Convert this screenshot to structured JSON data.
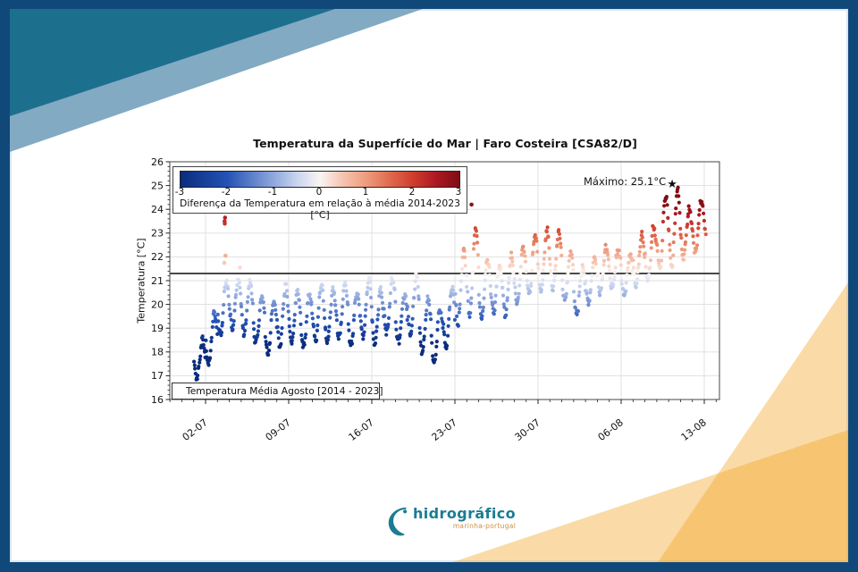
{
  "colors": {
    "frame_border": "#11487a",
    "teal_dark": "#1c708d",
    "teal_light": "#82aac2",
    "orange_overlay": "#f3a623",
    "plot_spine": "#555555",
    "grid": "#dedede",
    "mean_line": "#2e2e2e",
    "tick": "#222222",
    "logo_teal": "#1a7d92",
    "logo_sub_orange": "#cf9040"
  },
  "logo": {
    "name": "hidrográfico",
    "subtitle": "marinha-portugal"
  },
  "chart_data": {
    "type": "scatter",
    "title": "Temperatura da Superfície do Mar | Faro Costeira [CSA82/D]",
    "ylabel": "Temperatura [°C]",
    "ylim": [
      16,
      26
    ],
    "y_ticks": [
      16,
      17,
      18,
      19,
      20,
      21,
      22,
      23,
      24,
      25,
      26
    ],
    "x_tick_labels": [
      "02-07",
      "09-07",
      "16-07",
      "23-07",
      "30-07",
      "06-08",
      "13-08"
    ],
    "x_tick_days": [
      1,
      8,
      15,
      22,
      29,
      36,
      43
    ],
    "grid": true,
    "points_per_day": 22,
    "mean_line": {
      "value": 21.3,
      "label": "Temperatura Média Agosto [2014 - 2023]"
    },
    "colorbar": {
      "min": -3,
      "max": 3,
      "ticks": [
        -3,
        -2,
        -1,
        0,
        1,
        2,
        3
      ],
      "label": "Diferença da Temperatura em relação à média 2014-2023 [°C]",
      "stops": [
        [
          -3,
          "#0b2c7d"
        ],
        [
          -2,
          "#2452b5"
        ],
        [
          -1,
          "#8fa7dd"
        ],
        [
          -0.5,
          "#c9d4ef"
        ],
        [
          0,
          "#f9f5f3"
        ],
        [
          0.5,
          "#f6c3ae"
        ],
        [
          1,
          "#ee9b7d"
        ],
        [
          1.5,
          "#e06a4e"
        ],
        [
          2,
          "#cf3e2e"
        ],
        [
          2.5,
          "#ab1822"
        ],
        [
          3,
          "#7f0d15"
        ]
      ]
    },
    "annotation": {
      "text": "Máximo: 25.1°C",
      "day": 40.3,
      "value": 25.1
    },
    "daily": [
      {
        "date": "01-07",
        "low": 16.9,
        "high": 18.5
      },
      {
        "date": "02-07",
        "low": 17.5,
        "high": 19.6
      },
      {
        "date": "03-07",
        "low": 18.7,
        "high": 21.0
      },
      {
        "date": "04-07",
        "low": 19.0,
        "high": 21.1
      },
      {
        "date": "05-07",
        "low": 18.8,
        "high": 20.9
      },
      {
        "date": "06-07",
        "low": 18.4,
        "high": 20.3
      },
      {
        "date": "07-07",
        "low": 17.9,
        "high": 20.1
      },
      {
        "date": "08-07",
        "low": 18.2,
        "high": 20.8
      },
      {
        "date": "09-07",
        "low": 18.4,
        "high": 20.6
      },
      {
        "date": "10-07",
        "low": 18.2,
        "high": 20.5
      },
      {
        "date": "11-07",
        "low": 18.5,
        "high": 20.8
      },
      {
        "date": "12-07",
        "low": 18.4,
        "high": 20.6
      },
      {
        "date": "13-07",
        "low": 18.6,
        "high": 20.9
      },
      {
        "date": "14-07",
        "low": 18.3,
        "high": 20.5
      },
      {
        "date": "15-07",
        "low": 18.7,
        "high": 21.0
      },
      {
        "date": "16-07",
        "low": 18.4,
        "high": 20.6
      },
      {
        "date": "17-07",
        "low": 18.8,
        "high": 21.1
      },
      {
        "date": "18-07",
        "low": 18.4,
        "high": 20.4
      },
      {
        "date": "19-07",
        "low": 18.7,
        "high": 21.2
      },
      {
        "date": "20-07",
        "low": 18.0,
        "high": 20.2
      },
      {
        "date": "21-07",
        "low": 17.6,
        "high": 19.8
      },
      {
        "date": "22-07",
        "low": 18.2,
        "high": 20.7
      },
      {
        "date": "23-07",
        "low": 19.2,
        "high": 22.2
      },
      {
        "date": "24-07",
        "low": 19.6,
        "high": 23.2
      },
      {
        "date": "25-07",
        "low": 19.4,
        "high": 21.9
      },
      {
        "date": "26-07",
        "low": 19.7,
        "high": 21.6
      },
      {
        "date": "27-07",
        "low": 19.6,
        "high": 22.0
      },
      {
        "date": "28-07",
        "low": 20.1,
        "high": 22.4
      },
      {
        "date": "29-07",
        "low": 20.4,
        "high": 22.9
      },
      {
        "date": "30-07",
        "low": 20.6,
        "high": 23.1
      },
      {
        "date": "31-07",
        "low": 20.7,
        "high": 23.0
      },
      {
        "date": "01-08",
        "low": 20.2,
        "high": 22.2
      },
      {
        "date": "02-08",
        "low": 19.6,
        "high": 21.6
      },
      {
        "date": "03-08",
        "low": 20.1,
        "high": 21.9
      },
      {
        "date": "04-08",
        "low": 20.5,
        "high": 22.4
      },
      {
        "date": "05-08",
        "low": 20.7,
        "high": 22.3
      },
      {
        "date": "06-08",
        "low": 20.4,
        "high": 22.1
      },
      {
        "date": "07-08",
        "low": 20.8,
        "high": 22.9
      },
      {
        "date": "08-08",
        "low": 21.0,
        "high": 23.3
      },
      {
        "date": "09-08",
        "low": 21.4,
        "high": 24.6
      },
      {
        "date": "10-08",
        "low": 21.6,
        "high": 24.8
      },
      {
        "date": "11-08",
        "low": 22.0,
        "high": 24.0
      },
      {
        "date": "12-08",
        "low": 22.2,
        "high": 24.4
      },
      {
        "date": "13-08",
        "low": 22.8,
        "high": 24.0,
        "frac": 0.15
      }
    ],
    "outliers": [
      [
        2.62,
        23.4
      ],
      [
        2.64,
        23.65
      ],
      [
        2.66,
        23.95
      ],
      [
        2.6,
        23.5
      ],
      [
        2.58,
        21.75
      ],
      [
        2.68,
        22.05
      ],
      [
        3.9,
        21.55
      ],
      [
        23.4,
        24.2
      ]
    ]
  }
}
